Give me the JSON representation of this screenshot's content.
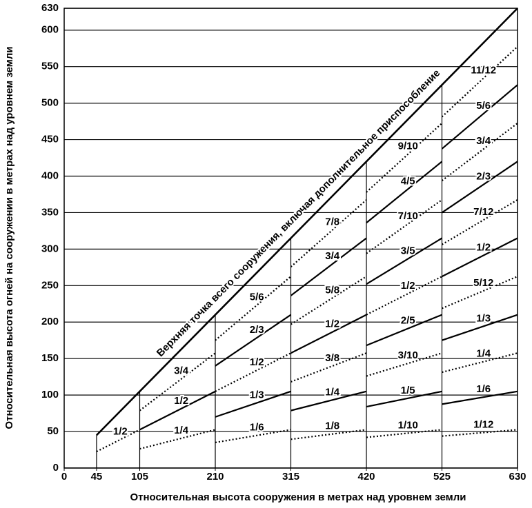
{
  "chart_data": {
    "type": "line",
    "xlabel": "Относительная высота сооружения в метрах над уровнем земли",
    "ylabel": "Относительная высота огней на сооружении в метрах над уровнем земли",
    "xlim": [
      0,
      630
    ],
    "ylim": [
      0,
      630
    ],
    "xticks": [
      0,
      45,
      105,
      210,
      315,
      420,
      525,
      630
    ],
    "yticks": [
      0,
      50,
      100,
      150,
      200,
      250,
      300,
      350,
      400,
      450,
      500,
      550,
      600,
      630
    ],
    "grid": true,
    "color": "#000000",
    "series": [
      {
        "name": "Верхняя точка всего сооружения, включая дополнительное приспособление",
        "style": "solid",
        "x": [
          45,
          630
        ],
        "values": [
          45,
          630
        ]
      },
      {
        "name": "1/2",
        "style": "dotted",
        "x": [
          45,
          105
        ],
        "values": [
          22.5,
          52.5
        ]
      },
      {
        "name": "3/4",
        "style": "dotted",
        "x": [
          105,
          210
        ],
        "values": [
          78.75,
          157.5
        ]
      },
      {
        "name": "1/2",
        "style": "solid",
        "x": [
          105,
          210
        ],
        "values": [
          52.5,
          105
        ]
      },
      {
        "name": "1/4",
        "style": "dotted",
        "x": [
          105,
          210
        ],
        "values": [
          26.25,
          52.5
        ]
      },
      {
        "name": "5/6",
        "style": "dotted",
        "x": [
          210,
          315
        ],
        "values": [
          175,
          262.5
        ]
      },
      {
        "name": "2/3",
        "style": "solid",
        "x": [
          210,
          315
        ],
        "values": [
          140,
          210
        ]
      },
      {
        "name": "1/2",
        "style": "dotted",
        "x": [
          210,
          315
        ],
        "values": [
          105,
          157.5
        ]
      },
      {
        "name": "1/3",
        "style": "solid",
        "x": [
          210,
          315
        ],
        "values": [
          70,
          105
        ]
      },
      {
        "name": "1/6",
        "style": "dotted",
        "x": [
          210,
          315
        ],
        "values": [
          35,
          52.5
        ]
      },
      {
        "name": "7/8",
        "style": "dotted",
        "x": [
          315,
          420
        ],
        "values": [
          275.625,
          367.5
        ]
      },
      {
        "name": "3/4",
        "style": "solid",
        "x": [
          315,
          420
        ],
        "values": [
          236.25,
          315
        ]
      },
      {
        "name": "5/8",
        "style": "dotted",
        "x": [
          315,
          420
        ],
        "values": [
          196.875,
          262.5
        ]
      },
      {
        "name": "1/2",
        "style": "solid",
        "x": [
          315,
          420
        ],
        "values": [
          157.5,
          210
        ]
      },
      {
        "name": "3/8",
        "style": "dotted",
        "x": [
          315,
          420
        ],
        "values": [
          118.125,
          157.5
        ]
      },
      {
        "name": "1/4",
        "style": "solid",
        "x": [
          315,
          420
        ],
        "values": [
          78.75,
          105
        ]
      },
      {
        "name": "1/8",
        "style": "dotted",
        "x": [
          315,
          420
        ],
        "values": [
          39.375,
          52.5
        ]
      },
      {
        "name": "9/10",
        "style": "dotted",
        "x": [
          420,
          525
        ],
        "values": [
          378,
          472.5
        ]
      },
      {
        "name": "4/5",
        "style": "solid",
        "x": [
          420,
          525
        ],
        "values": [
          336,
          420
        ]
      },
      {
        "name": "7/10",
        "style": "dotted",
        "x": [
          420,
          525
        ],
        "values": [
          294,
          367.5
        ]
      },
      {
        "name": "3/5",
        "style": "solid",
        "x": [
          420,
          525
        ],
        "values": [
          252,
          315
        ]
      },
      {
        "name": "1/2",
        "style": "dotted",
        "x": [
          420,
          525
        ],
        "values": [
          210,
          262.5
        ]
      },
      {
        "name": "2/5",
        "style": "solid",
        "x": [
          420,
          525
        ],
        "values": [
          168,
          210
        ]
      },
      {
        "name": "3/10",
        "style": "dotted",
        "x": [
          420,
          525
        ],
        "values": [
          126,
          157.5
        ]
      },
      {
        "name": "1/5",
        "style": "solid",
        "x": [
          420,
          525
        ],
        "values": [
          84,
          105
        ]
      },
      {
        "name": "1/10",
        "style": "dotted",
        "x": [
          420,
          525
        ],
        "values": [
          42,
          52.5
        ]
      },
      {
        "name": "11/12",
        "style": "dotted",
        "x": [
          525,
          630
        ],
        "values": [
          481.25,
          577.5
        ]
      },
      {
        "name": "5/6",
        "style": "solid",
        "x": [
          525,
          630
        ],
        "values": [
          437.5,
          525
        ]
      },
      {
        "name": "3/4",
        "style": "dotted",
        "x": [
          525,
          630
        ],
        "values": [
          393.75,
          472.5
        ]
      },
      {
        "name": "2/3",
        "style": "solid",
        "x": [
          525,
          630
        ],
        "values": [
          350,
          420
        ]
      },
      {
        "name": "7/12",
        "style": "dotted",
        "x": [
          525,
          630
        ],
        "values": [
          306.25,
          367.5
        ]
      },
      {
        "name": "1/2",
        "style": "solid",
        "x": [
          525,
          630
        ],
        "values": [
          262.5,
          315
        ]
      },
      {
        "name": "5/12",
        "style": "dotted",
        "x": [
          525,
          630
        ],
        "values": [
          218.75,
          262.5
        ]
      },
      {
        "name": "1/3",
        "style": "solid",
        "x": [
          525,
          630
        ],
        "values": [
          175,
          210
        ]
      },
      {
        "name": "1/4",
        "style": "dotted",
        "x": [
          525,
          630
        ],
        "values": [
          131.25,
          157.5
        ]
      },
      {
        "name": "1/6",
        "style": "solid",
        "x": [
          525,
          630
        ],
        "values": [
          87.5,
          105
        ]
      },
      {
        "name": "1/12",
        "style": "dotted",
        "x": [
          525,
          630
        ],
        "values": [
          43.75,
          52.5
        ]
      }
    ]
  }
}
